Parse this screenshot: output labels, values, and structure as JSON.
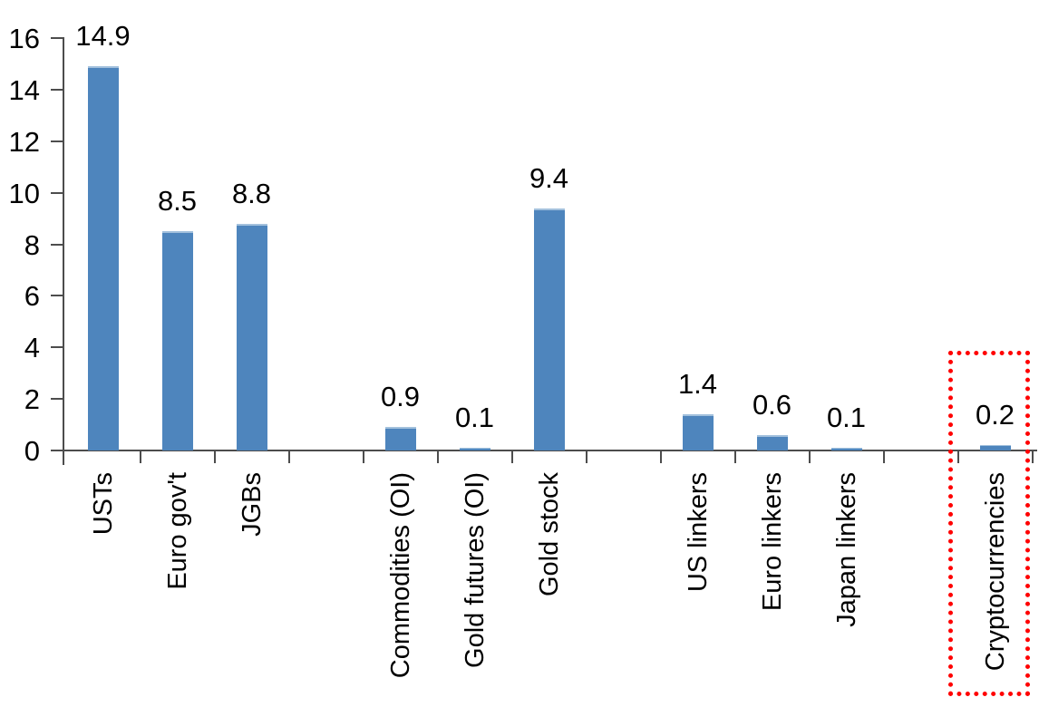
{
  "chart_data": {
    "type": "bar",
    "title": "",
    "xlabel": "",
    "ylabel": "",
    "categories": [
      "USTs",
      "Euro gov't",
      "JGBs",
      "",
      "Commodities (OI)",
      "Gold futures (OI)",
      "Gold stock",
      "",
      "US linkers",
      "Euro linkers",
      "Japan linkers",
      "",
      "Cryptocurrencies"
    ],
    "values": [
      14.9,
      8.5,
      8.8,
      null,
      0.9,
      0.1,
      9.4,
      null,
      1.4,
      0.6,
      0.1,
      null,
      0.2
    ],
    "data_labels": [
      "14.9",
      "8.5",
      "8.8",
      null,
      "0.9",
      "0.1",
      "9.4",
      null,
      "1.4",
      "0.6",
      "0.1",
      null,
      "0.2"
    ],
    "yticks": [
      "16",
      "14",
      "12",
      "10",
      "8",
      "6",
      "4",
      "2",
      "0"
    ],
    "ytick_values": [
      16,
      14,
      12,
      10,
      8,
      6,
      4,
      2,
      0
    ],
    "ylim": [
      0,
      16
    ],
    "grid": false,
    "legend": null,
    "category_label_rotation_deg": 90,
    "bar_color": "#4E85BD",
    "bar_top_edge_color": "#A3C1DD",
    "axis_color": "#4D4D4D",
    "text_color": "#000000",
    "highlight": {
      "target": "Cryptocurrencies",
      "shape": "dotted-rectangle",
      "color": "#FF0000"
    }
  }
}
